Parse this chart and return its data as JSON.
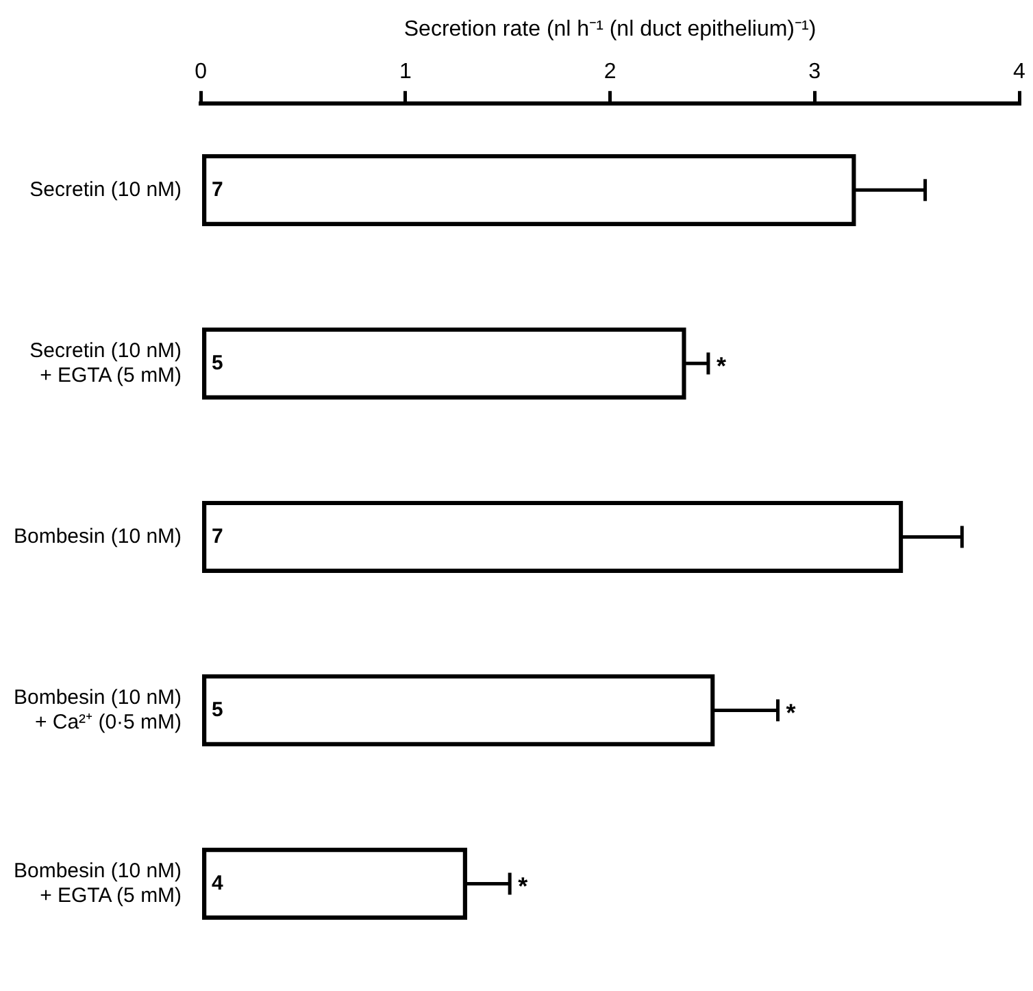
{
  "chart_data": {
    "type": "bar",
    "orientation": "horizontal",
    "xlabel": "Secretion rate (nl h⁻¹ (nl duct epithelium)⁻¹)",
    "categories": [
      "Secretin (10 nM)",
      "Secretin (10 nM)\n+ EGTA (5 mM)",
      "Bombesin (10 nM)",
      "Bombesin (10 nM)\n+ Ca²⁺ (0·5 mM)",
      "Bombesin (10 nM)\n+ EGTA (5 mM)"
    ],
    "values": [
      3.2,
      2.37,
      3.43,
      2.51,
      1.3
    ],
    "errors": [
      [
        3.2,
        3.54
      ],
      [
        2.37,
        2.48
      ],
      [
        3.43,
        3.72
      ],
      [
        2.51,
        2.82
      ],
      [
        1.3,
        1.51
      ]
    ],
    "color": "#000000",
    "xlim": [
      0,
      4
    ],
    "xticks": [
      0,
      1,
      2,
      3,
      4
    ],
    "annotations": [
      {
        "text": "7",
        "x": 0,
        "y": "Secretin (10 nM)"
      },
      {
        "text": "5",
        "x": 0,
        "y": "Secretin (10 nM)\n+ EGTA (5 mM)"
      },
      {
        "text": "7",
        "x": 0,
        "y": "Bombesin (10 nM)"
      },
      {
        "text": "5",
        "x": 0,
        "y": "Bombesin (10 nM)\n+ Ca²⁺ (0·5 mM)"
      },
      {
        "text": "4",
        "x": 0,
        "y": "Bombesin (10 nM)\n+ EGTA (5 mM)"
      },
      {
        "text": "*",
        "x": 2.48,
        "y": "Secretin (10 nM)\n+ EGTA (5 mM)"
      },
      {
        "text": "*",
        "x": 2.82,
        "y": "Bombesin (10 nM)\n+ Ca²⁺ (0·5 mM)"
      },
      {
        "text": "*",
        "x": 1.51,
        "y": "Bombesin (10 nM)\n+ EGTA (5 mM)"
      }
    ]
  }
}
